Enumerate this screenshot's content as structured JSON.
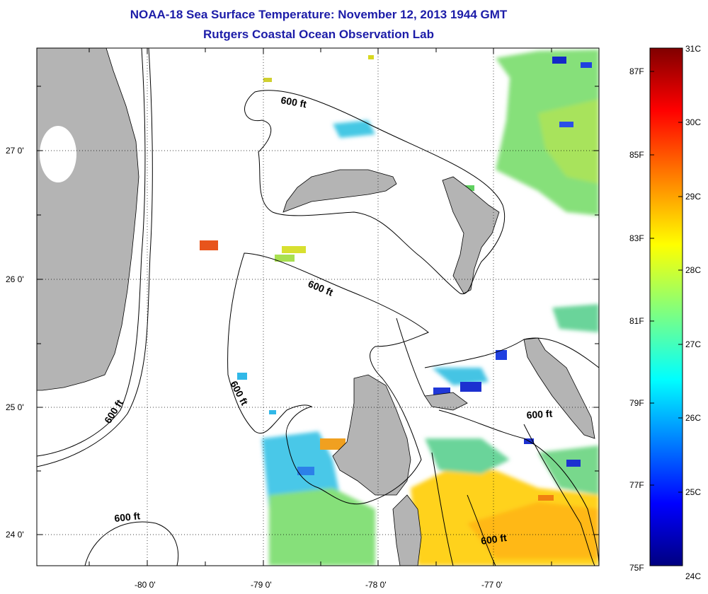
{
  "header": {
    "title": "NOAA-18 Sea Surface Temperature:  November 12, 2013 1944 GMT",
    "subtitle": "Rutgers Coastal Ocean Observation Lab"
  },
  "map": {
    "lon_ticks": [
      "-80 0'",
      "-79 0'",
      "-78 0'",
      "-77 0'"
    ],
    "lat_ticks": [
      "27 0'",
      "26 0'",
      "25 0'",
      "24 0'"
    ],
    "contour_labels": [
      "600 ft",
      "600 ft",
      "600 ft",
      "600 ft",
      "600 ft",
      "600 ft"
    ],
    "colors": {
      "land": "#b4b4b4",
      "ocean_no_data": "#ffffff"
    }
  },
  "colorbar": {
    "celsius_labels": [
      "31C",
      "30C",
      "29C",
      "28C",
      "27C",
      "26C",
      "25C",
      "24C"
    ],
    "fahrenheit_labels": [
      "87F",
      "85F",
      "83F",
      "81F",
      "79F",
      "77F",
      "75F"
    ],
    "range_c": [
      24,
      31
    ]
  }
}
